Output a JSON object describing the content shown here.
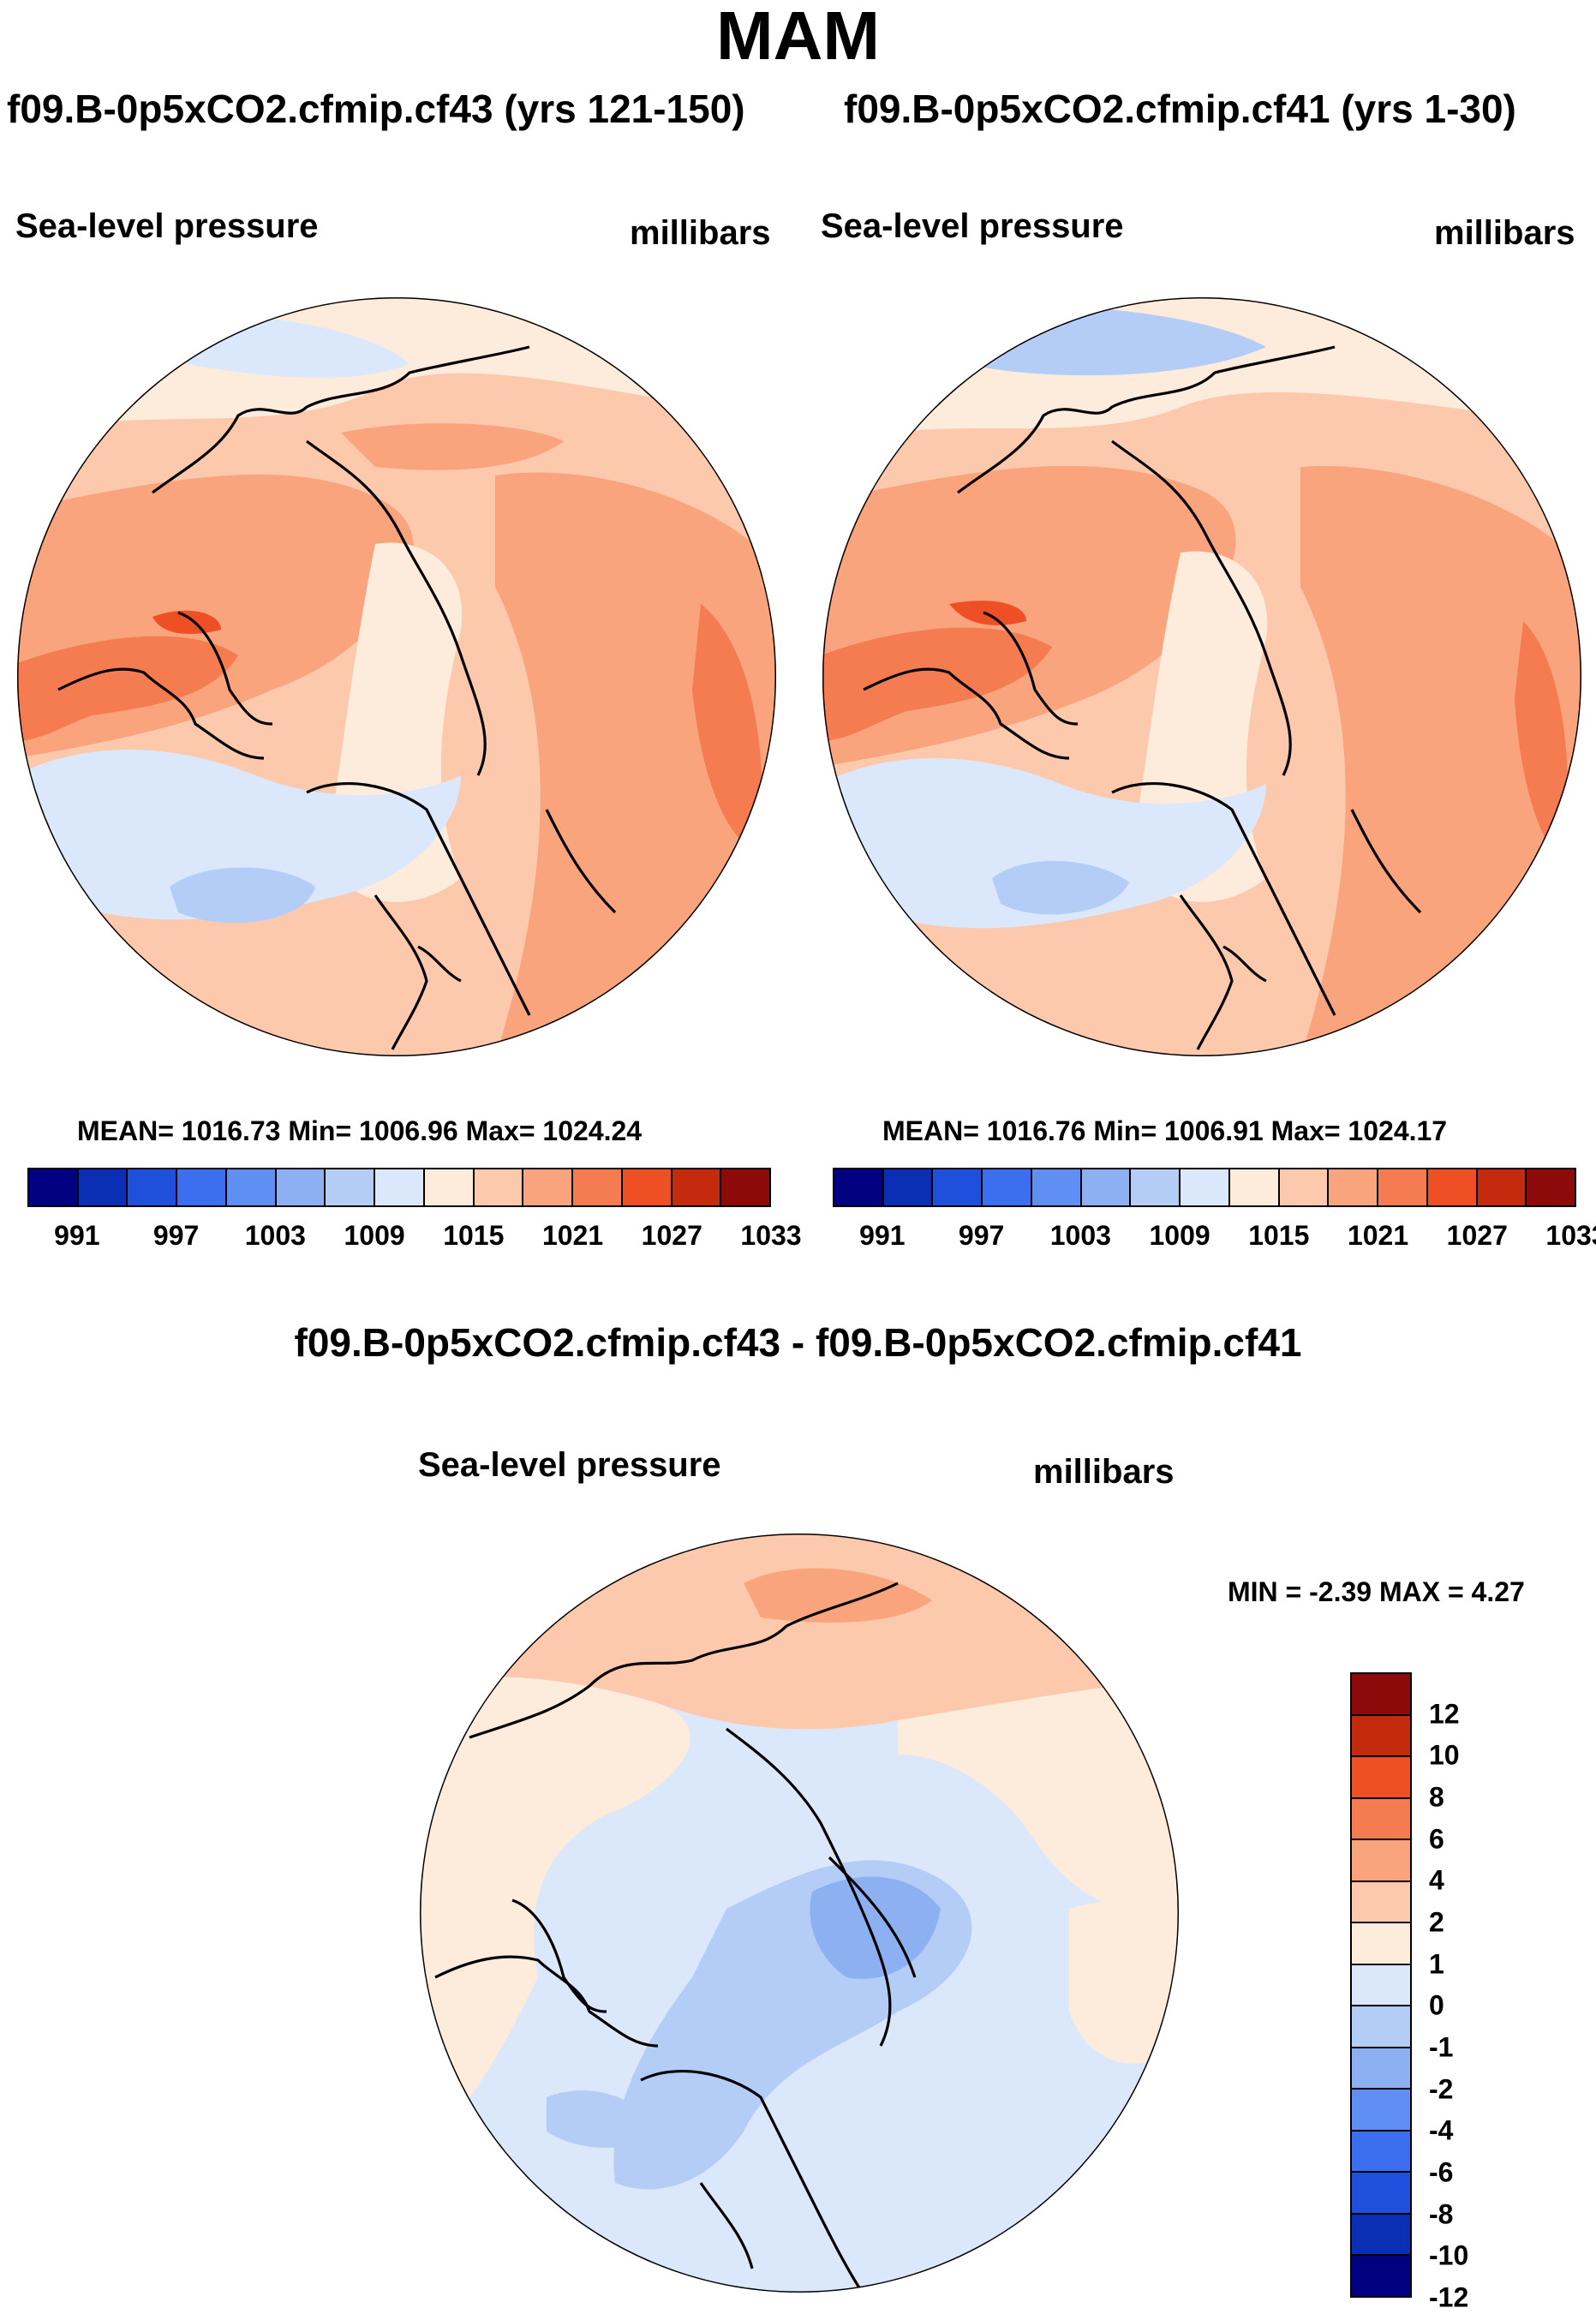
{
  "season": "MAM",
  "panels": [
    {
      "case_title": "f09.B-0p5xCO2.cfmip.cf43 (yrs 121-150)",
      "variable": "Sea-level pressure",
      "units": "millibars",
      "stats": "MEAN= 1016.73  Min= 1006.96  Max= 1024.24"
    },
    {
      "case_title": "f09.B-0p5xCO2.cfmip.cf41 (yrs 1-30)",
      "variable": "Sea-level pressure",
      "units": "millibars",
      "stats": "MEAN= 1016.76  Min= 1006.91  Max= 1024.17"
    }
  ],
  "colorbar_top": {
    "colors": [
      "#000080",
      "#0a2fb4",
      "#1e50dc",
      "#3c6ff0",
      "#5f8ff2",
      "#8cb0f2",
      "#b4cdf7",
      "#dbe8fb",
      "#fdebdc",
      "#fcc9ad",
      "#f9a47d",
      "#f57b50",
      "#ee4f24",
      "#c42a0c",
      "#8c0a0a"
    ],
    "ticks": [
      "991",
      "997",
      "1003",
      "1009",
      "1015",
      "1021",
      "1027",
      "1033"
    ]
  },
  "difference": {
    "title": "f09.B-0p5xCO2.cfmip.cf43 - f09.B-0p5xCO2.cfmip.cf41",
    "variable": "Sea-level pressure",
    "units": "millibars",
    "minmax": "MIN =  -2.39 MAX =   4.27"
  },
  "colorbar_diff": {
    "colors": [
      "#8c0a0a",
      "#c42a0c",
      "#ee4f24",
      "#f57b50",
      "#f9a47d",
      "#fcc9ad",
      "#fdebdc",
      "#dbe8fb",
      "#b4cdf7",
      "#8cb0f2",
      "#5f8ff2",
      "#3c6ff0",
      "#1e50dc",
      "#0a2fb4",
      "#000080"
    ],
    "ticks": [
      "12",
      "10",
      "8",
      "6",
      "4",
      "2",
      "1",
      "0",
      "-1",
      "-2",
      "-4",
      "-6",
      "-8",
      "-10",
      "-12"
    ]
  }
}
